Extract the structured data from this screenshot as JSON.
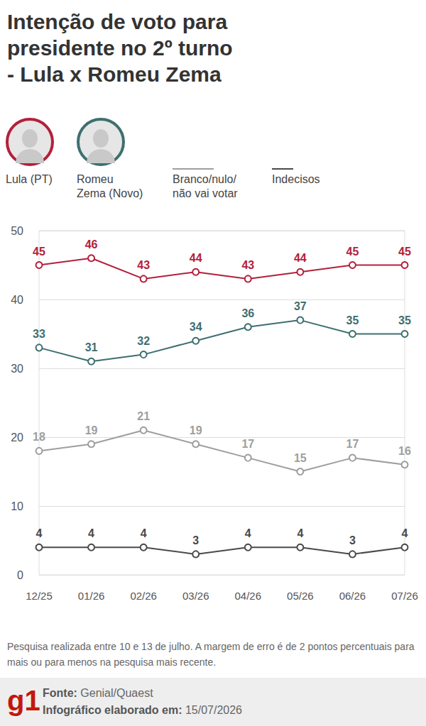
{
  "chart_data": {
    "type": "line",
    "title": "Intenção de voto para presidente no 2º turno - Lula x Romeu Zema",
    "categories": [
      "12/25",
      "01/26",
      "02/26",
      "03/26",
      "04/26",
      "05/26",
      "06/26",
      "07/26"
    ],
    "series": [
      {
        "name": "Lula (PT)",
        "color": "#b3203b",
        "marker": "circle",
        "values": [
          45,
          46,
          43,
          44,
          43,
          44,
          45,
          45
        ]
      },
      {
        "name": "Romeu Zema (Novo)",
        "color": "#3e6f70",
        "marker": "circle",
        "values": [
          33,
          31,
          32,
          34,
          36,
          37,
          35,
          35
        ]
      },
      {
        "name": "Branco/nulo/não vai votar",
        "color": "#9e9e9e",
        "marker": "circle",
        "values": [
          18,
          19,
          21,
          19,
          17,
          15,
          17,
          16
        ]
      },
      {
        "name": "Indecisos",
        "color": "#4a4a4a",
        "marker": "circle",
        "values": [
          4,
          4,
          4,
          3,
          4,
          4,
          3,
          4
        ]
      }
    ],
    "ylim": [
      0,
      50
    ],
    "yticks": [
      0,
      10,
      20,
      30,
      40,
      50
    ],
    "grid": true,
    "data_labels": true,
    "legend": "top-left",
    "note": "Pesquisa realizada entre 10 e 13 de julho. A margem de erro é de 2 pontos percentuais para mais ou para menos na pesquisa mais recente.",
    "logo": "g1",
    "source": {
      "label": "Fonte:",
      "text": "Genial/Quaest"
    },
    "credit": {
      "label": "Infográfico elaborado em:",
      "text": "15/07/2026"
    }
  }
}
